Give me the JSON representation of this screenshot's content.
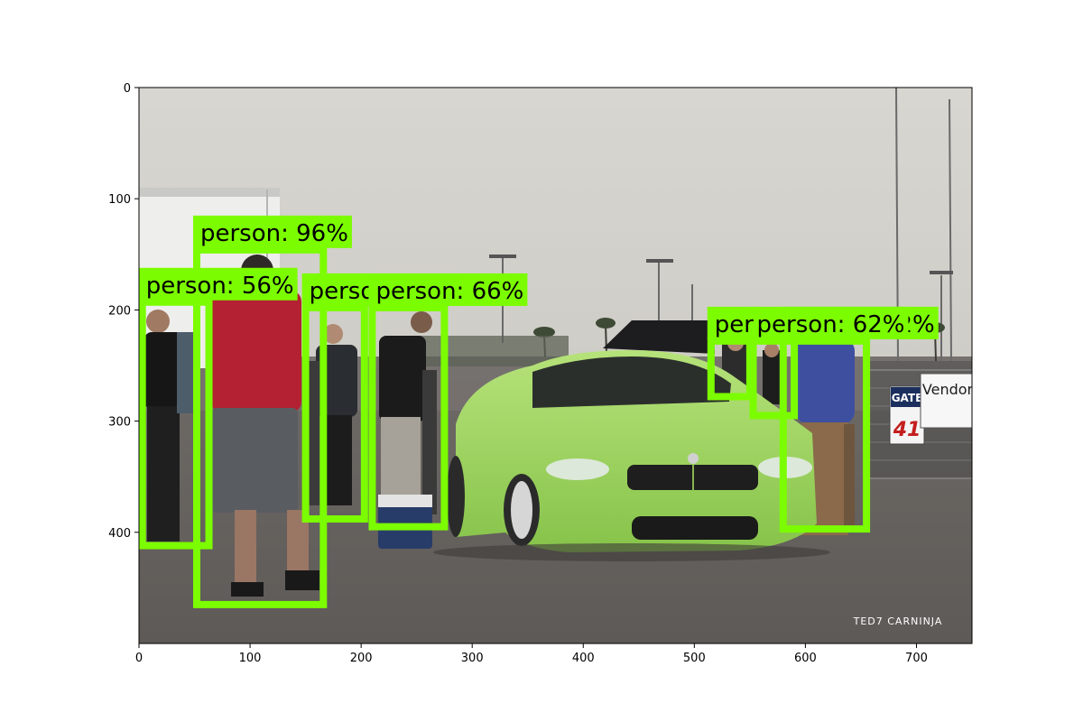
{
  "plot": {
    "x_ticks": [
      0,
      100,
      200,
      300,
      400,
      500,
      600,
      700
    ],
    "y_ticks": [
      0,
      100,
      200,
      300,
      400
    ],
    "xlim": [
      0,
      750
    ],
    "ylim": [
      0,
      500
    ],
    "y_inverted": true
  },
  "photo": {
    "signs": {
      "gate": "GATE",
      "gate_number": "41",
      "vendor": "Vendor"
    },
    "watermark": "TED7  CARNINJA"
  },
  "detections": {
    "box_color": "#7CFC00",
    "label_text_color": "#000000",
    "items": [
      {
        "label": "person: 96%",
        "x0": 52,
        "y0": 146,
        "x1": 166,
        "y1": 465
      },
      {
        "label": "person: 56%",
        "x0": 3,
        "y0": 193,
        "x1": 63,
        "y1": 412
      },
      {
        "label": "person: 54%",
        "x0": 150,
        "y0": 198,
        "x1": 203,
        "y1": 388
      },
      {
        "label": "person: 66%",
        "x0": 210,
        "y0": 198,
        "x1": 275,
        "y1": 395
      },
      {
        "label": "person: 82%",
        "x0": 580,
        "y0": 228,
        "x1": 655,
        "y1": 397
      },
      {
        "label": "person: 62%",
        "x0": 553,
        "y0": 228,
        "x1": 590,
        "y1": 295
      },
      {
        "label": "per",
        "x0": 515,
        "y0": 228,
        "x1": 550,
        "y1": 278
      }
    ]
  }
}
